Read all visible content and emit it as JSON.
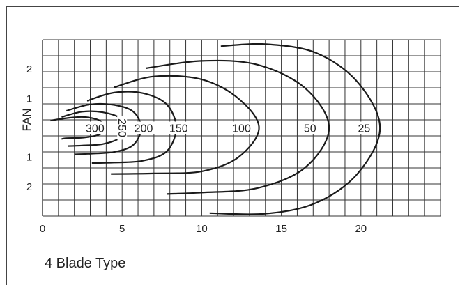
{
  "chart_data": {
    "type": "contour",
    "caption": "4 Blade Type",
    "ylabel": "FAN",
    "x_ticks": [
      "0",
      "5",
      "10",
      "15",
      "20"
    ],
    "y_ticks": [
      "2",
      "1",
      "",
      "1",
      "2"
    ],
    "xlim": [
      0,
      25
    ],
    "ylim": [
      -3,
      3
    ],
    "grid": true,
    "contours": [
      {
        "label": "300",
        "points": [
          [
            0.5,
            0.25
          ],
          [
            1.5,
            0.33
          ],
          [
            2.6,
            0.37
          ],
          [
            3.6,
            0.25
          ],
          [
            3.9,
            0.0
          ],
          [
            3.6,
            -0.22
          ],
          [
            2.6,
            -0.33
          ],
          [
            1.5,
            -0.35
          ],
          [
            1.2,
            -0.38
          ]
        ]
      },
      {
        "label": "250",
        "points": [
          [
            1.2,
            0.37
          ],
          [
            2.5,
            0.55
          ],
          [
            3.8,
            0.53
          ],
          [
            4.9,
            0.33
          ],
          [
            5.2,
            0.0
          ],
          [
            4.9,
            -0.33
          ],
          [
            3.8,
            -0.55
          ],
          [
            2.5,
            -0.6
          ],
          [
            1.6,
            -0.62
          ]
        ]
      },
      {
        "label": "200",
        "points": [
          [
            1.5,
            0.58
          ],
          [
            3.0,
            0.8
          ],
          [
            4.5,
            0.78
          ],
          [
            5.7,
            0.55
          ],
          [
            6.2,
            0.0
          ],
          [
            5.7,
            -0.58
          ],
          [
            4.5,
            -0.82
          ],
          [
            3.0,
            -0.88
          ],
          [
            2.0,
            -0.9
          ]
        ]
      },
      {
        "label": "150",
        "points": [
          [
            2.8,
            0.92
          ],
          [
            4.5,
            1.2
          ],
          [
            6.3,
            1.18
          ],
          [
            7.8,
            0.8
          ],
          [
            8.4,
            0.0
          ],
          [
            7.8,
            -0.8
          ],
          [
            6.3,
            -1.12
          ],
          [
            4.5,
            -1.18
          ],
          [
            3.1,
            -1.2
          ]
        ]
      },
      {
        "label": "100",
        "points": [
          [
            4.5,
            1.38
          ],
          [
            7.0,
            1.75
          ],
          [
            10.0,
            1.65
          ],
          [
            12.3,
            1.0
          ],
          [
            13.6,
            0.0
          ],
          [
            12.3,
            -1.0
          ],
          [
            10.0,
            -1.48
          ],
          [
            7.0,
            -1.55
          ],
          [
            4.3,
            -1.57
          ]
        ]
      },
      {
        "label": "50",
        "points": [
          [
            6.5,
            2.03
          ],
          [
            10.0,
            2.28
          ],
          [
            13.5,
            2.15
          ],
          [
            16.5,
            1.35
          ],
          [
            18.0,
            0.0
          ],
          [
            16.5,
            -1.35
          ],
          [
            13.5,
            -2.05
          ],
          [
            10.0,
            -2.2
          ],
          [
            7.8,
            -2.25
          ]
        ]
      },
      {
        "label": "25",
        "points": [
          [
            11.2,
            2.78
          ],
          [
            14.0,
            2.85
          ],
          [
            17.2,
            2.55
          ],
          [
            19.8,
            1.55
          ],
          [
            21.2,
            0.0
          ],
          [
            19.8,
            -1.55
          ],
          [
            17.2,
            -2.55
          ],
          [
            14.0,
            -2.92
          ],
          [
            10.5,
            -2.9
          ]
        ]
      }
    ]
  }
}
